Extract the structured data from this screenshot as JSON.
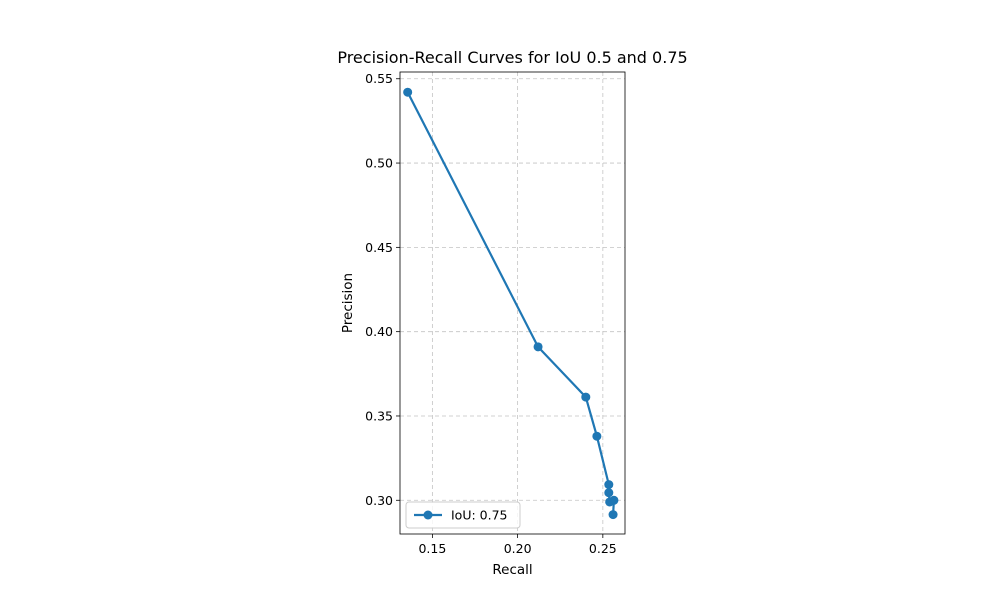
{
  "chart_data": {
    "type": "line",
    "title": "Precision-Recall Curves for IoU 0.5 and 0.75",
    "xlabel": "Recall",
    "ylabel": "Precision",
    "xlim": [
      0.131,
      0.263
    ],
    "ylim": [
      0.28,
      0.554
    ],
    "xticks": [
      0.15,
      0.2,
      0.25
    ],
    "xtick_labels": [
      "0.15",
      "0.20",
      "0.25"
    ],
    "yticks": [
      0.3,
      0.35,
      0.4,
      0.45,
      0.5,
      0.55
    ],
    "ytick_labels": [
      "0.30",
      "0.35",
      "0.40",
      "0.45",
      "0.50",
      "0.55"
    ],
    "grid": true,
    "legend": "lower-left",
    "series": [
      {
        "name": "IoU: 0.75",
        "color": "#1f77b4",
        "marker": "circle",
        "x": [
          0.1355,
          0.212,
          0.24,
          0.2465,
          0.2535,
          0.2535,
          0.254,
          0.2565,
          0.256
        ],
        "y": [
          0.542,
          0.391,
          0.3612,
          0.338,
          0.3093,
          0.3045,
          0.299,
          0.3,
          0.2915
        ]
      }
    ]
  }
}
